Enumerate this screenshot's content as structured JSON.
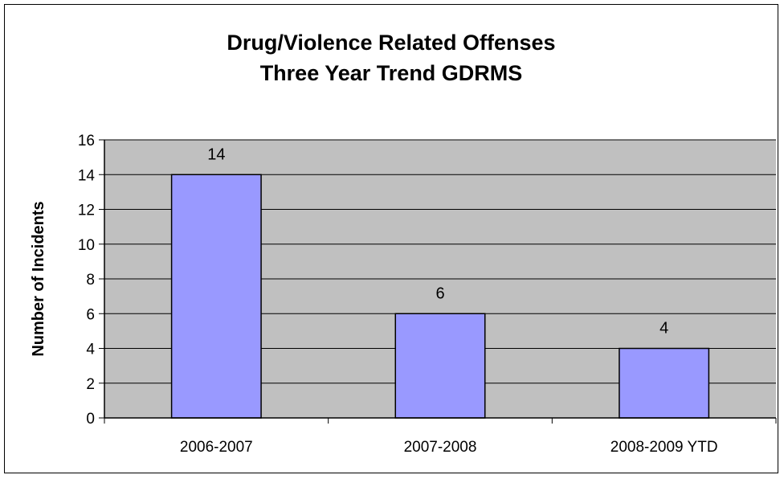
{
  "chart_data": {
    "type": "bar",
    "title_lines": [
      "Drug/Violence Related Offenses",
      "Three Year Trend  GDRMS"
    ],
    "categories": [
      "2006-2007",
      "2007-2008",
      "2008-2009 YTD"
    ],
    "values": [
      14,
      6,
      4
    ],
    "data_labels": [
      "14",
      "6",
      "4"
    ],
    "xlabel": "",
    "ylabel": "Number of Incidents",
    "ylim": [
      0,
      16
    ],
    "yticks": [
      "0",
      "2",
      "4",
      "6",
      "8",
      "10",
      "12",
      "14",
      "16"
    ],
    "grid": true,
    "legend": "none",
    "colors": {
      "bar_fill": "#9999ff",
      "bar_stroke": "#000000",
      "plot_background": "#c0c0c0",
      "gridline": "#000000"
    }
  }
}
